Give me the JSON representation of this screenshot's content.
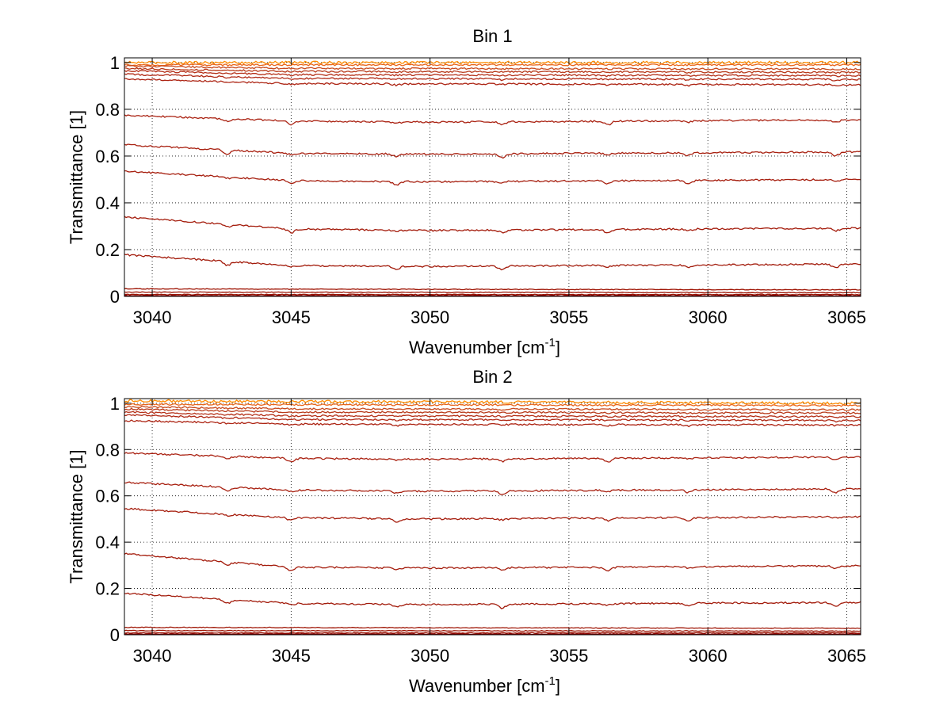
{
  "chart_data": [
    {
      "type": "line",
      "title": "Bin 1",
      "xlabel": "Wavenumber [cm",
      "xlabel_sup": "-1",
      "xlabel_end": "]",
      "ylabel": "Transmittance [1]",
      "xlim": [
        3039,
        3065.5
      ],
      "ylim": [
        0,
        1.02
      ],
      "xticks": [
        3040,
        3045,
        3050,
        3055,
        3060,
        3065
      ],
      "yticks": [
        0,
        0.2,
        0.4,
        0.6,
        0.8,
        1
      ],
      "ytick_labels": [
        "0",
        "0.2",
        "0.4",
        "0.6",
        "0.8",
        "1"
      ],
      "grid": "dotted",
      "dips": [
        3042.7,
        3045.0,
        3048.8,
        3052.6,
        3056.4,
        3059.3,
        3064.6
      ],
      "series": [
        {
          "color": "#FF8C00",
          "points": [
            [
              3039,
              1.0
            ],
            [
              3065.5,
              1.0
            ]
          ]
        },
        {
          "color": "#E8651A",
          "points": [
            [
              3039,
              0.99
            ],
            [
              3065.5,
              0.99
            ]
          ]
        },
        {
          "color": "#C84A1E",
          "points": [
            [
              3039,
              0.985
            ],
            [
              3045,
              0.975
            ],
            [
              3065.5,
              0.972
            ]
          ]
        },
        {
          "color": "#B83A1A",
          "points": [
            [
              3039,
              0.975
            ],
            [
              3045,
              0.962
            ],
            [
              3065.5,
              0.958
            ]
          ]
        },
        {
          "color": "#B53018",
          "points": [
            [
              3039,
              0.965
            ],
            [
              3045,
              0.948
            ],
            [
              3065.5,
              0.944
            ]
          ]
        },
        {
          "color": "#B02A16",
          "points": [
            [
              3039,
              0.95
            ],
            [
              3045,
              0.932
            ],
            [
              3065.5,
              0.928
            ]
          ]
        },
        {
          "color": "#AD2514",
          "points": [
            [
              3039,
              0.93
            ],
            [
              3045,
              0.91
            ],
            [
              3065.5,
              0.905
            ]
          ]
        },
        {
          "color": "#AA2212",
          "points": [
            [
              3039,
              0.775
            ],
            [
              3045,
              0.75
            ],
            [
              3050,
              0.745
            ],
            [
              3065.5,
              0.755
            ]
          ]
        },
        {
          "color": "#A82010",
          "points": [
            [
              3039,
              0.648
            ],
            [
              3045,
              0.612
            ],
            [
              3050,
              0.608
            ],
            [
              3065.5,
              0.618
            ]
          ]
        },
        {
          "color": "#A61E0E",
          "points": [
            [
              3039,
              0.535
            ],
            [
              3045,
              0.495
            ],
            [
              3050,
              0.49
            ],
            [
              3065.5,
              0.5
            ]
          ]
        },
        {
          "color": "#A41C0C",
          "points": [
            [
              3039,
              0.34
            ],
            [
              3045,
              0.288
            ],
            [
              3050,
              0.282
            ],
            [
              3065.5,
              0.292
            ]
          ]
        },
        {
          "color": "#A21A0A",
          "points": [
            [
              3039,
              0.178
            ],
            [
              3045,
              0.132
            ],
            [
              3050,
              0.128
            ],
            [
              3065.5,
              0.138
            ]
          ]
        },
        {
          "color": "#A01808",
          "points": [
            [
              3039,
              0.032
            ],
            [
              3065.5,
              0.028
            ]
          ]
        },
        {
          "color": "#9E1606",
          "points": [
            [
              3039,
              0.018
            ],
            [
              3065.5,
              0.016
            ]
          ]
        },
        {
          "color": "#9A1404",
          "points": [
            [
              3039,
              0.008
            ],
            [
              3065.5,
              0.008
            ]
          ]
        },
        {
          "color": "#8B0000",
          "points": [
            [
              3039,
              0.003
            ],
            [
              3065.5,
              0.003
            ]
          ]
        }
      ]
    },
    {
      "type": "line",
      "title": "Bin 2",
      "xlabel": "Wavenumber [cm",
      "xlabel_sup": "-1",
      "xlabel_end": "]",
      "ylabel": "Transmittance [1]",
      "xlim": [
        3039,
        3065.5
      ],
      "ylim": [
        0,
        1.02
      ],
      "xticks": [
        3040,
        3045,
        3050,
        3055,
        3060,
        3065
      ],
      "yticks": [
        0,
        0.2,
        0.4,
        0.6,
        0.8,
        1
      ],
      "ytick_labels": [
        "0",
        "0.2",
        "0.4",
        "0.6",
        "0.8",
        "1"
      ],
      "grid": "dotted",
      "dips": [
        3042.7,
        3045.0,
        3048.8,
        3052.6,
        3056.4,
        3059.3,
        3064.6
      ],
      "series": [
        {
          "color": "#FF8C00",
          "points": [
            [
              3039,
              1.01
            ],
            [
              3065.5,
              1.0
            ]
          ]
        },
        {
          "color": "#E8651A",
          "points": [
            [
              3039,
              0.995
            ],
            [
              3065.5,
              0.99
            ]
          ]
        },
        {
          "color": "#C84A1E",
          "points": [
            [
              3039,
              0.985
            ],
            [
              3045,
              0.976
            ],
            [
              3065.5,
              0.972
            ]
          ]
        },
        {
          "color": "#B83A1A",
          "points": [
            [
              3039,
              0.975
            ],
            [
              3045,
              0.962
            ],
            [
              3065.5,
              0.958
            ]
          ]
        },
        {
          "color": "#B53018",
          "points": [
            [
              3039,
              0.962
            ],
            [
              3045,
              0.946
            ],
            [
              3065.5,
              0.942
            ]
          ]
        },
        {
          "color": "#B02A16",
          "points": [
            [
              3039,
              0.95
            ],
            [
              3045,
              0.93
            ],
            [
              3065.5,
              0.926
            ]
          ]
        },
        {
          "color": "#AD2514",
          "points": [
            [
              3039,
              0.925
            ],
            [
              3045,
              0.91
            ],
            [
              3065.5,
              0.906
            ]
          ]
        },
        {
          "color": "#AA2212",
          "points": [
            [
              3039,
              0.785
            ],
            [
              3045,
              0.762
            ],
            [
              3050,
              0.758
            ],
            [
              3065.5,
              0.768
            ]
          ]
        },
        {
          "color": "#A82010",
          "points": [
            [
              3039,
              0.658
            ],
            [
              3045,
              0.625
            ],
            [
              3050,
              0.62
            ],
            [
              3065.5,
              0.63
            ]
          ]
        },
        {
          "color": "#A61E0E",
          "points": [
            [
              3039,
              0.545
            ],
            [
              3045,
              0.505
            ],
            [
              3050,
              0.5
            ],
            [
              3065.5,
              0.51
            ]
          ]
        },
        {
          "color": "#A41C0C",
          "points": [
            [
              3039,
              0.35
            ],
            [
              3045,
              0.292
            ],
            [
              3050,
              0.288
            ],
            [
              3065.5,
              0.298
            ]
          ]
        },
        {
          "color": "#A21A0A",
          "points": [
            [
              3039,
              0.18
            ],
            [
              3045,
              0.135
            ],
            [
              3050,
              0.13
            ],
            [
              3065.5,
              0.14
            ]
          ]
        },
        {
          "color": "#A01808",
          "points": [
            [
              3039,
              0.032
            ],
            [
              3065.5,
              0.028
            ]
          ]
        },
        {
          "color": "#9E1606",
          "points": [
            [
              3039,
              0.018
            ],
            [
              3065.5,
              0.016
            ]
          ]
        },
        {
          "color": "#9A1404",
          "points": [
            [
              3039,
              0.008
            ],
            [
              3065.5,
              0.008
            ]
          ]
        },
        {
          "color": "#8B0000",
          "points": [
            [
              3039,
              0.003
            ],
            [
              3065.5,
              0.003
            ]
          ]
        }
      ]
    }
  ]
}
